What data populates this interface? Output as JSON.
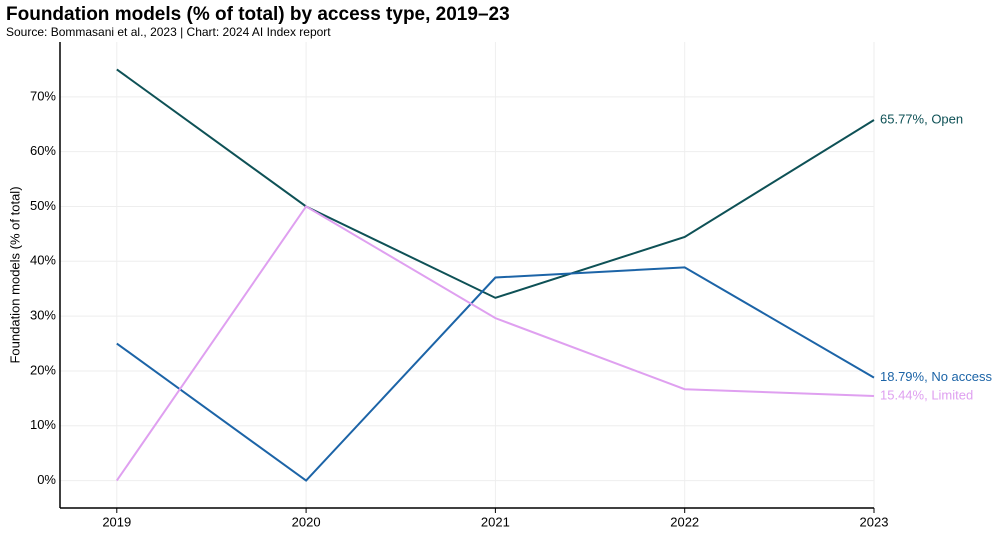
{
  "chart_data": {
    "type": "line",
    "title": "Foundation models (% of total) by access type, 2019–23",
    "subtitle": "Source: Bommasani et al., 2023 | Chart: 2024 AI Index report",
    "y_label": "Foundation models (% of total)",
    "x": [
      2019,
      2020,
      2021,
      2022,
      2023
    ],
    "series": [
      {
        "name": "Open",
        "color": "#0e5156",
        "values": [
          75,
          50,
          33.33,
          44.44,
          65.77
        ],
        "value_labels": [
          null,
          null,
          null,
          null,
          "65.77%, Open"
        ]
      },
      {
        "name": "No access",
        "color": "#1c64a7",
        "values": [
          25,
          0,
          37.04,
          38.89,
          18.79
        ],
        "value_labels": [
          null,
          null,
          null,
          null,
          "18.79%, No access"
        ]
      },
      {
        "name": "Limited",
        "color": "#dfa0f0",
        "values": [
          0,
          50,
          29.63,
          16.67,
          15.44
        ],
        "value_labels": [
          null,
          null,
          null,
          null,
          "15.44%, Limited"
        ]
      }
    ],
    "xlim": [
      2018.7,
      2023
    ],
    "xticks": [
      2019,
      2020,
      2021,
      2022,
      2023
    ],
    "ylim": [
      -5,
      80
    ],
    "yticks": [
      {
        "value": 0,
        "label": "0%"
      },
      {
        "value": 10,
        "label": "10%"
      },
      {
        "value": 20,
        "label": "20%"
      },
      {
        "value": 30,
        "label": "30%"
      },
      {
        "value": 40,
        "label": "40%"
      },
      {
        "value": 50,
        "label": "50%"
      },
      {
        "value": 60,
        "label": "60%"
      },
      {
        "value": 70,
        "label": "70%"
      }
    ],
    "grid": true
  }
}
